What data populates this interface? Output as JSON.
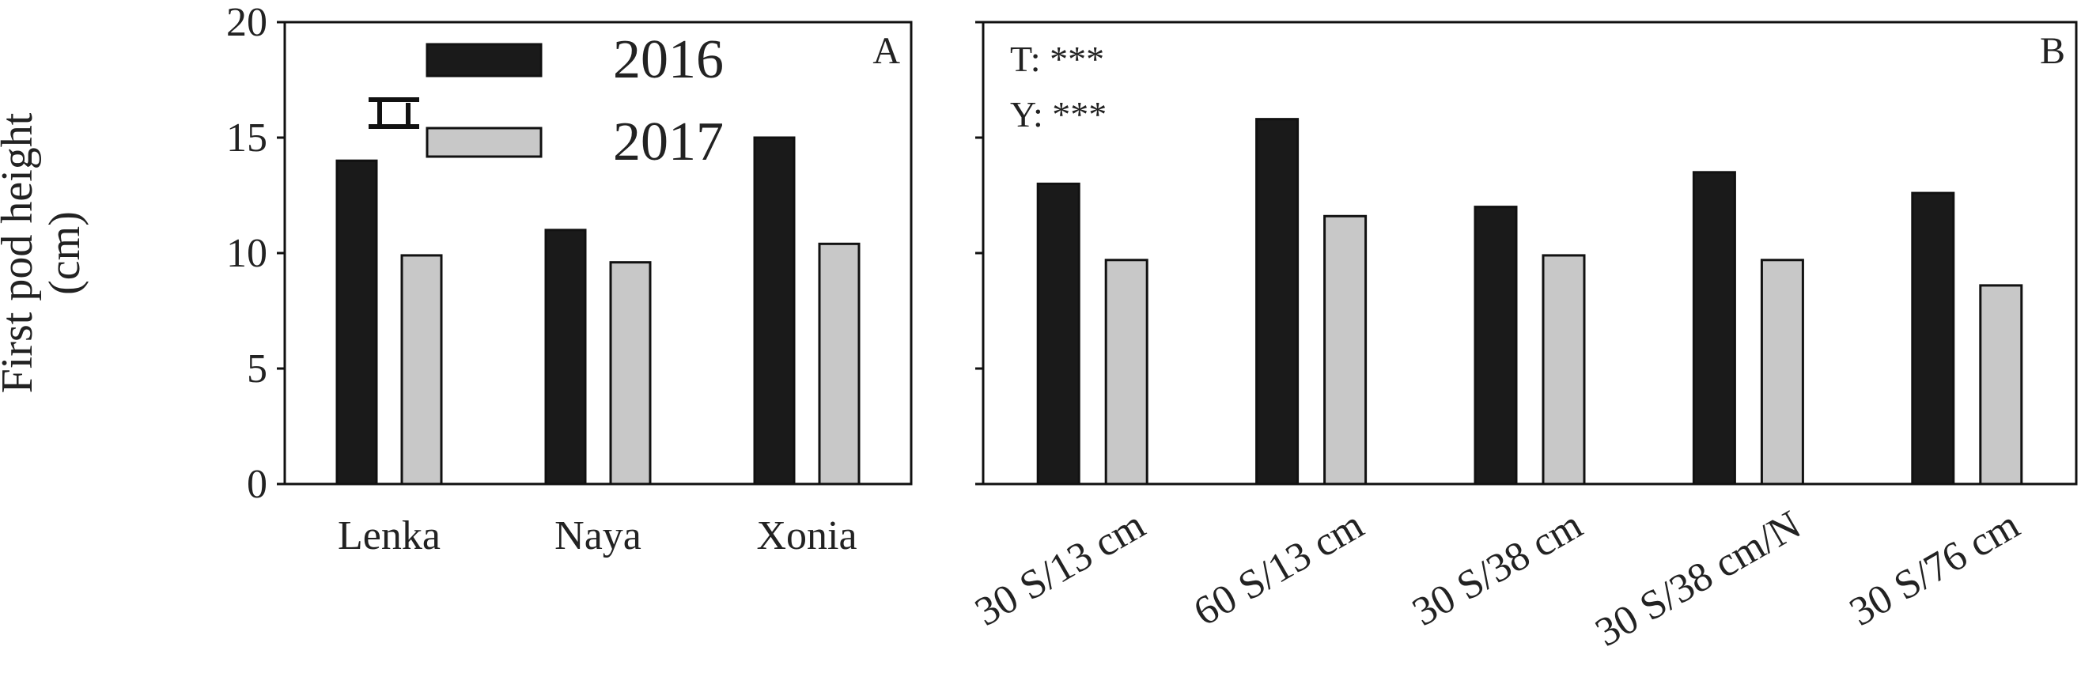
{
  "y_axis_label_line1": "First pod height",
  "y_axis_label_line2": "(cm)",
  "colors": {
    "y2016": "#1a1a1a",
    "y2017": "#c8c8c8",
    "axis": "#111111"
  },
  "chart_data": [
    {
      "type": "bar",
      "panel": "A",
      "categories": [
        "Lenka",
        "Naya",
        "Xonia"
      ],
      "series": [
        {
          "name": "2016",
          "values": [
            14.0,
            11.0,
            15.0
          ]
        },
        {
          "name": "2017",
          "values": [
            9.9,
            9.6,
            10.4
          ]
        }
      ],
      "ylim": [
        0,
        20
      ],
      "yticks": [
        0,
        5,
        10,
        15,
        20
      ],
      "ylabel": "First pod height (cm)",
      "legend": {
        "position": "top-left",
        "entries": [
          "2016",
          "2017"
        ]
      },
      "error_bar_marker": true,
      "grid": false
    },
    {
      "type": "bar",
      "panel": "B",
      "categories": [
        "30 S/13 cm",
        "60 S/13 cm",
        "30 S/38 cm",
        "30 S/38 cm/N",
        "30 S/76 cm"
      ],
      "series": [
        {
          "name": "2016",
          "values": [
            13.0,
            15.8,
            12.0,
            13.5,
            12.6
          ]
        },
        {
          "name": "2017",
          "values": [
            9.7,
            11.6,
            9.9,
            9.7,
            8.6
          ]
        }
      ],
      "ylim": [
        0,
        20
      ],
      "annotations": [
        "T: ***",
        "Y: ***"
      ],
      "grid": false
    }
  ]
}
